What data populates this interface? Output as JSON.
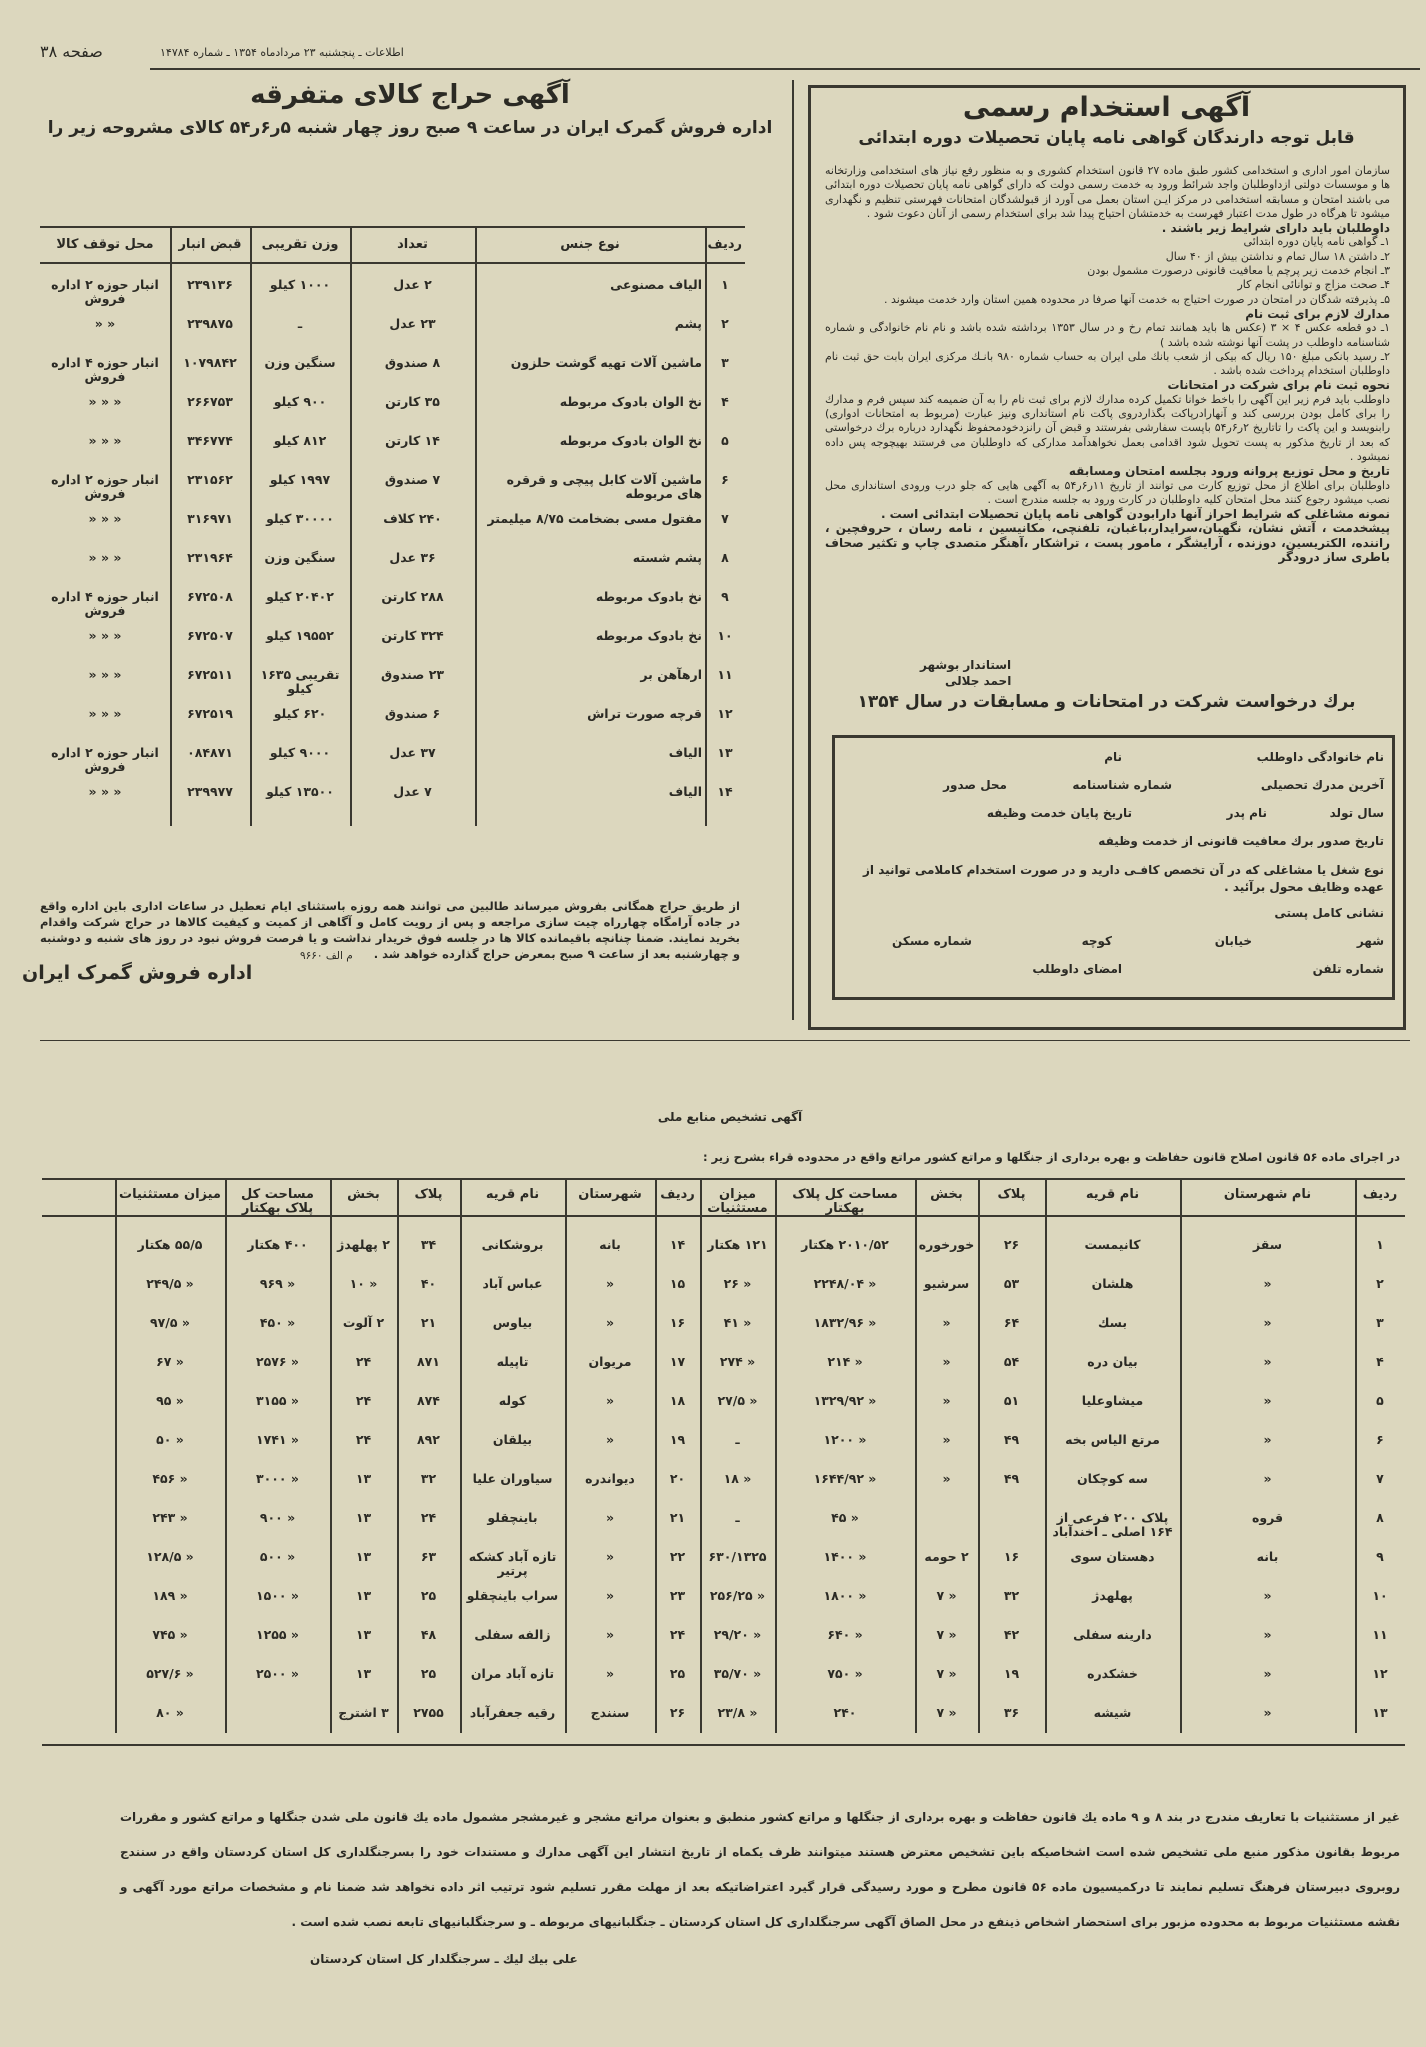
{
  "header": {
    "page_label": "صفحه ۳۸",
    "dateline": "اطلاعات ـ پنجشنبه ۲۳ مردادماه ۱۳۵۴ ـ شماره ۱۴۷۸۴"
  },
  "auction_ad": {
    "title": "آگهی حراج کالای متفرقه",
    "subtitle": "اداره فروش گمرک ایران در ساعت ۹ صبح روز چهار شنبه ۵ر۶ر۵۴ کالای مشروحه زیر را",
    "columns": [
      "ردیف",
      "نوع جنس",
      "تعداد",
      "وزن تقریبی",
      "قبض انبار",
      "محل توقف کالا"
    ],
    "rows": [
      [
        "۱",
        "الیاف مصنوعی",
        "۲ عدل",
        "۱۰۰۰ کیلو",
        "۲۳۹۱۳۶",
        "انبار حوزه ۲ اداره فروش"
      ],
      [
        "۲",
        "پشم",
        "۲۳ عدل",
        "ـ",
        "۲۳۹۸۷۵",
        "«      «"
      ],
      [
        "۳",
        "ماشین آلات تهیه گوشت حلزون",
        "۸ صندوق",
        "سنگین وزن",
        "۱۰۷۹۸۴۲",
        "انبار حوزه ۴ اداره فروش"
      ],
      [
        "۴",
        "نخ الوان بادوک مربوطه",
        "۳۵ کارتن",
        "۹۰۰ کیلو",
        "۲۶۶۷۵۳",
        "«    «    «"
      ],
      [
        "۵",
        "نخ الوان بادوک مربوطه",
        "۱۴ کارتن",
        "۸۱۲ کیلو",
        "۳۴۶۷۷۴",
        "«    «    «"
      ],
      [
        "۶",
        "ماشین آلات کابل پیچی و قرقره های مربوطه",
        "۷ صندوق",
        "۱۹۹۷ کیلو",
        "۲۳۱۵۶۲",
        "انبار حوزه ۲ اداره فروش"
      ],
      [
        "۷",
        "مفتول مسی بضخامت ۸/۷۵ میلیمتر",
        "۲۴۰ کلاف",
        "۳۰۰۰۰ کیلو",
        "۳۱۶۹۷۱",
        "«    «    «"
      ],
      [
        "۸",
        "پشم شسته",
        "۳۶ عدل",
        "سنگین وزن",
        "۲۳۱۹۶۴",
        "«    «    «"
      ],
      [
        "۹",
        "نخ بادوک مربوطه",
        "۲۸۸ کارتن",
        "۲۰۴۰۲ کیلو",
        "۶۷۲۵۰۸",
        "انبار حوزه ۴ اداره فروش"
      ],
      [
        "۱۰",
        "نخ بادوک مربوطه",
        "۳۲۴ کارتن",
        "۱۹۵۵۲ کیلو",
        "۶۷۲۵۰۷",
        "«    «    «"
      ],
      [
        "۱۱",
        "ارهآهن بر",
        "۲۳ صندوق",
        "تقریبی ۱۶۳۵ کیلو",
        "۶۷۲۵۱۱",
        "«    «    «"
      ],
      [
        "۱۲",
        "قرچه صورت تراش",
        "۶ صندوق",
        "۶۲۰ کیلو",
        "۶۷۲۵۱۹",
        "«    «    «"
      ],
      [
        "۱۳",
        "الیاف",
        "۳۷ عدل",
        "۹۰۰۰ کیلو",
        "۰۸۴۸۷۱",
        "انبار حوزه ۲ اداره فروش"
      ],
      [
        "۱۴",
        "الیاف",
        "۷ عدل",
        "۱۳۵۰۰ کیلو",
        "۲۳۹۹۷۷",
        "«    «    «"
      ]
    ],
    "footer": "از طریق حراج همگانی بفروش میرساند طالبین می توانند همه روزه باستثنای ایام تعطیل در ساعات اداری باین اداره واقع در جاده آرامگاه چهارراه چیت سازی مراجعه و پس از رویت کامل و آگاهی از کمیت و کیفیت کالاها در حراج شرکت واقدام بخرید نمایند. ضمنا چنانچه باقیمانده کالا ها در جلسه فوق خریدار نداشت و یا فرصت فروش نبود در روز های شنبه و دوشنبه و چهارشنبه بعد از ساعت ۹ صبح بمعرض حراج گذارده خواهد شد .",
    "reference": "م الف ۹۶۶۰",
    "signature": "اداره فروش گمرک ایران"
  },
  "employment_ad": {
    "title": "آگهی استخدام رسمی",
    "subtitle": "قابل توجه دارندگان گواهی نامه پایان  تحصیلات دوره ابتدائی",
    "paragraphs": [
      {
        "bold": false,
        "text": "سازمان امور اداری و استخدامی کشور طبق ماده ۲۷ قانون استخدام کشوری و به منظور رفع نیاز های استخدامی وزارتخانه ها و موسسات دولتی ازداوطلبان واجد شرائط ورود به خدمت رسمی دولت که دارای گواهی نامه پایان تحصیلات دوره ابتدائی می باشند امتحان و مسابقه استخدامی در مرکز ایـن استان بعمل می آورد از قبولشدگان امتحانات فهرستی تنظیم و نگهداری میشود تا هرگاه در طول مدت اعتبار فهرست به خدمتشان احتیاج پیدا شد برای استخدام رسمی از آنان دعوت شود ."
      },
      {
        "bold": true,
        "text": "داوطلبان باید دارای شرایط زیر باشند ."
      },
      {
        "bold": false,
        "text": "۱ـ گواهی نامه پایان دوره ابتدائی"
      },
      {
        "bold": false,
        "text": "۲ـ داشتن ۱۸ سال تمام و نداشتن بیش از ۴۰ سال"
      },
      {
        "bold": false,
        "text": "۳ـ انجام خدمت زیر پرچم یا معافیت قانونی درصورت مشمول بودن"
      },
      {
        "bold": false,
        "text": "۴ـ صحت مزاج و توانائی انجام کار"
      },
      {
        "bold": false,
        "text": "۵ـ پذیرفته شدگان در امتحان در صورت احتیاج به خدمت آنها صرفا در محدوده همین استان وارد خدمت میشوند ."
      },
      {
        "bold": true,
        "text": "مدارك لازم برای ثبت نام"
      },
      {
        "bold": false,
        "text": "۱ـ دو قطعه عکس ۴ × ۳ (عکس ها باید همانند تمام رخ و در سال ۱۳۵۳ برداشته شده باشد و نام نام خانوادگی و شماره شناسنامه داوطلب در پشت آنها نوشته شده باشد )"
      },
      {
        "bold": false,
        "text": "۲ـ رسید بانکی مبلغ ۱۵۰ ریال که بیکی از شعب بانك ملی ایران به حساب شماره ۹۸۰ بانـك مرکزی ایران بابت حق ثبت نام داوطلبان استخدام پرداخت شده باشد ."
      },
      {
        "bold": true,
        "text": "نحوه ثبت نام برای شرکت در امتحانات"
      },
      {
        "bold": false,
        "text": "داوطلب باید فرم زیر این آگهی را باخط خوانا تکمیل کرده مدارك لازم برای ثبت نام را به آن ضمیمه کند سپس فرم و مدارك را برای کامل بودن بررسی کند و آنهارادرپاکت بگذاردروی پاکت نام استانداری ونیز عبارت (مربوط به امتحانات ادواری) رابنویسد و این پاکت را تاتاریخ ۲ر۶ر۵۴ باپست سفارشی بفرستند و قبض آن رانزدخودمحفوظ نگهدارد درباره برك درخواستی که بعد از تاریخ مذکور به پست تحویل شود اقدامی بعمل نخواهدآمد مدارکی که داوطلبان می فرستند بهیچوجه پس داده نمیشود ."
      },
      {
        "bold": true,
        "text": "تاریخ و محل توزیع پروانه ورود بجلسه امتحان ومسابقه"
      },
      {
        "bold": false,
        "text": "داوطلبان برای اطلاع از محل توزیع کارت می توانند از تاریخ ۱۱ر۶ر۵۴ به آگهی هایی که جلو درب ورودی استانداری محل نصب میشود رجوع کنند محل امتحان کلیه داوطلبان در کارت ورود به جلسه مندرج است ."
      },
      {
        "bold": true,
        "text": "نمونه مشاغلی که شرایط احراز آنها دارابودن گواهی نامه پایان تحصیلات ابتدائی است ."
      },
      {
        "bold": true,
        "text": "پیشخدمت ، آتش نشان، نگهبان،سرایدار،باغبان، تلفنچی، مکانیسین ، نامه رسان ، حروفچین ، راننده، الکتریسین، دوزنده ، آرایشگر ، مامور پست ، تراشکار ،آهنگر متصدی چاپ و تکثیر صحاف باطری ساز درودگر"
      }
    ],
    "signer_title": "استاندار بوشهر",
    "signer_name": "احمد جلالی",
    "form_title": "برك درخواست شرکت در امتحانات و مسابقات در سال ۱۳۵۴",
    "form_fields": {
      "family_name": "نام خانوادگی داوطلب",
      "name": "نام",
      "last_degree": "آخرین مدرك تحصیلی",
      "id_number": "شماره شناسنامه",
      "issue_place": "محل صدور",
      "birth_year": "سال تولد",
      "father_name": "نام پدر",
      "service_end": "تاریخ پایان خدمت وظیفه",
      "exemption_date": "تاریخ صدور برك معافیت قانونی از خدمت وظیفه",
      "job_type": "نوع شغل یا مشاغلی که در آن تخصص کافـی دارید و در صورت استخدام کاملامی توانید از عهده وظایف محول برآئید .",
      "postal_address": "نشانی کامل پستی",
      "city": "شهر",
      "street": "خیابان",
      "alley": "کوچه",
      "house_number": "شماره مسکن",
      "phone": "شماره تلفن",
      "signature": "امضای داوطلب"
    }
  },
  "resources_ad": {
    "title": "آگهی تشخیص منابع ملی",
    "subtitle": "در اجرای ماده ۵۶ قانون اصلاح قانون حفاظت و بهره برداری از جنگلها و مراتع کشور مراتع واقع در محدوده قراء بشرح زیر :",
    "columns": [
      "ردیف",
      "نام شهرستان",
      "نام قریه",
      "پلاک",
      "بخش",
      "مساحت کل پلاک بهکتار",
      "میزان مستثنیات"
    ],
    "columns_left": [
      "ردیف",
      "شهرستان",
      "نام قریه",
      "پلاک",
      "بخش",
      "مساحت کل پلاک بهکتار",
      "میزان مستثنیات"
    ],
    "rows_right": [
      [
        "۱",
        "سقز",
        "کانیمست",
        "۲۶",
        "خورخوره",
        "۲۰۱۰/۵۲ هکتار",
        "۱۲۱ هکتار"
      ],
      [
        "۲",
        "«",
        "هلشان",
        "۵۳",
        "سرشیو",
        "«  ۲۲۴۸/۰۴",
        "«  ۲۶"
      ],
      [
        "۳",
        "«",
        "بسك",
        "۶۴",
        "«",
        "«  ۱۸۳۲/۹۶",
        "«  ۴۱"
      ],
      [
        "۴",
        "«",
        "بیان دره",
        "۵۴",
        "«",
        "«  ۲۱۴",
        "«  ۲۷۴"
      ],
      [
        "۵",
        "«",
        "میشاوعلیا",
        "۵۱",
        "«",
        "«  ۱۳۲۹/۹۲",
        "«  ۲۷/۵"
      ],
      [
        "۶",
        "«",
        "مرتع الیاس بخه",
        "۴۹",
        "«",
        "«  ۱۲۰۰",
        "ـ"
      ],
      [
        "۷",
        "«",
        "سه کوچکان",
        "۴۹",
        "«",
        "«  ۱۶۴۴/۹۲",
        "«  ۱۸"
      ],
      [
        "۸",
        "قروه",
        "پلاک ۲۰۰ فرعی از ۱۶۴ اصلی ـ اخندآباد",
        "",
        "",
        "«  ۴۵",
        "ـ"
      ],
      [
        "۹",
        "بانه",
        "دهستان سوی",
        "۱۶",
        "۲ حومه",
        "«  ۱۴۰۰",
        "۶۳۰/۱۳۲۵"
      ],
      [
        "۱۰",
        "«",
        "پهلهدژ",
        "۳۲",
        "«  ۷",
        "«  ۱۸۰۰",
        "«  ۲۵۶/۲۵"
      ],
      [
        "۱۱",
        "«",
        "دارینه سفلی",
        "۴۲",
        "«  ۷",
        "«  ۶۴۰",
        "«  ۲۹/۲۰"
      ],
      [
        "۱۲",
        "«",
        "خشکدره",
        "۱۹",
        "«  ۷",
        "«  ۷۵۰",
        "«  ۳۵/۷۰"
      ],
      [
        "۱۳",
        "«",
        "شیشه",
        "۳۶",
        "«  ۷",
        "۲۴۰",
        "«  ۲۳/۸"
      ]
    ],
    "rows_left": [
      [
        "۱۴",
        "بانه",
        "بروشکانی",
        "۳۴",
        "۲ پهلهدژ",
        "۴۰۰ هکتار",
        "۵۵/۵ هکتار"
      ],
      [
        "۱۵",
        "«",
        "عباس آباد",
        "۴۰",
        "«  ۱۰",
        "«  ۹۶۹",
        "«  ۲۴۹/۵"
      ],
      [
        "۱۶",
        "«",
        "بیاوس",
        "۲۱",
        "۲ آلوت",
        "«  ۴۵۰",
        "«  ۹۷/۵"
      ],
      [
        "۱۷",
        "مریوان",
        "تاپیله",
        "۸۷۱",
        "۲۴",
        "«  ۲۵۷۶",
        "«  ۶۷"
      ],
      [
        "۱۸",
        "«",
        "کوله",
        "۸۷۴",
        "۲۴",
        "«  ۳۱۵۵",
        "«  ۹۵"
      ],
      [
        "۱۹",
        "«",
        "بیلقان",
        "۸۹۲",
        "۲۴",
        "«  ۱۷۴۱",
        "«  ۵۰"
      ],
      [
        "۲۰",
        "دیواندره",
        "سیاوران علیا",
        "۳۲",
        "۱۳",
        "«  ۳۰۰۰",
        "«  ۴۵۶"
      ],
      [
        "۲۱",
        "«",
        "باینچقلو",
        "۲۴",
        "۱۳",
        "«  ۹۰۰",
        "«  ۲۴۳"
      ],
      [
        "۲۲",
        "«",
        "تازه آباد کشکه پرتیر",
        "۶۳",
        "۱۳",
        "«  ۵۰۰",
        "«  ۱۲۸/۵"
      ],
      [
        "۲۳",
        "«",
        "سراب باینچقلو",
        "۲۵",
        "۱۳",
        "«  ۱۵۰۰",
        "«  ۱۸۹"
      ],
      [
        "۲۴",
        "«",
        "زالفه سفلی",
        "۴۸",
        "۱۳",
        "«  ۱۲۵۵",
        "«  ۷۴۵"
      ],
      [
        "۲۵",
        "«",
        "تازه آباد مران",
        "۲۵",
        "۱۳",
        "«  ۲۵۰۰",
        "«  ۵۲۷/۶"
      ],
      [
        "۲۶",
        "سنندج",
        "رقیه جعفرآباد",
        "۲۷۵۵",
        "۳ اشترج",
        "",
        "«  ۸۰"
      ]
    ],
    "footer": "غیر از مستثنیات با تعاریف مندرج در بند ۸ و ۹ ماده یك قانون حفاظت و بهره برداری از جنگلها و مراتع کشور منطبق و بعنوان مراتع مشجر و غیرمشجر مشمول ماده یك قانون ملی شدن جنگلها و مراتع کشور و مقررات مربوط بقانون مذکور منبع ملی تشخیص شده است اشخاصیکه باین تشخیص معترض هستند میتوانند ظرف یکماه از تاریخ انتشار این آگهی مدارك و مستندات خود را بسرجنگلداری کل استان کردستان واقع در سنندج روبروی دبیرستان فرهنگ تسلیم نمایند تا درکمیسیون ماده ۵۶ قانون مطرح و مورد رسیدگی قرار گیرد اعتراضاتیکه بعد از مهلت مقرر تسلیم شود ترتیب اثر داده نخواهد شد ضمنا نام و مشخصات مراتع مورد آگهی و نقشه مستثنیات مربوط به محدوده مزبور برای استحضار اشخاص ذینفع در محل الصاق آگهی سرجنگلداری کل استان کردستان ـ جنگلبانیهای مربوطه ـ و سرجنگلبانیهای تابعه نصب شده است .",
    "signature": "علی بیك لیك ـ سرجنگلدار کل استان کردستان"
  },
  "colors": {
    "paper": "#dcd7be",
    "ink": "#2b2a24"
  }
}
